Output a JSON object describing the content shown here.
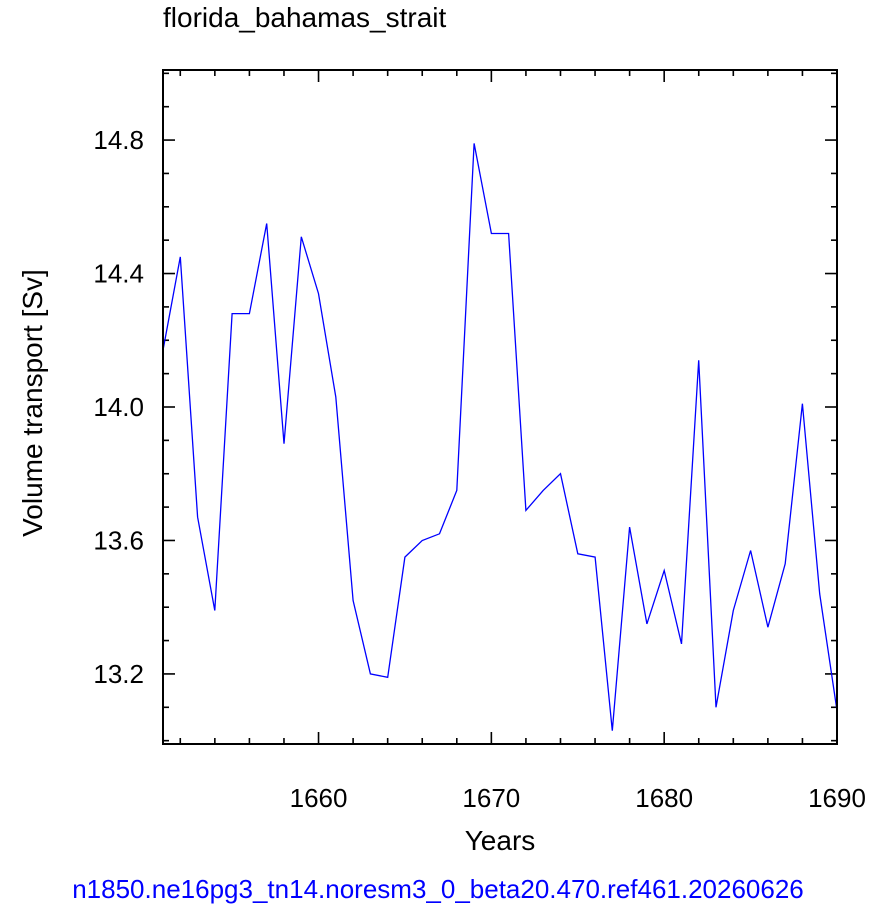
{
  "chart_data": {
    "type": "line",
    "title": "florida_bahamas_strait",
    "xlabel": "Years",
    "ylabel": "Volume transport [Sv]",
    "footer": "n1850.ne16pg3_tn14.noresm3_0_beta20.470.ref461.20260626",
    "xlim": [
      1651,
      1690
    ],
    "ylim": [
      12.99,
      15.01
    ],
    "x_ticks": [
      1660,
      1670,
      1680,
      1690
    ],
    "x_tick_labels": [
      "1660",
      "1670",
      "1680",
      "1690"
    ],
    "y_ticks": [
      13.2,
      13.6,
      14.0,
      14.4,
      14.8
    ],
    "y_tick_labels": [
      "13.2",
      "13.6",
      "14.0",
      "14.4",
      "14.8"
    ],
    "grid": false,
    "series": [
      {
        "color": "#0000ff",
        "x": [
          1651,
          1652,
          1653,
          1654,
          1655,
          1656,
          1657,
          1658,
          1659,
          1660,
          1661,
          1662,
          1663,
          1664,
          1665,
          1666,
          1667,
          1668,
          1669,
          1670,
          1671,
          1672,
          1673,
          1674,
          1675,
          1676,
          1677,
          1678,
          1679,
          1680,
          1681,
          1682,
          1683,
          1684,
          1685,
          1686,
          1687,
          1688,
          1689,
          1690
        ],
        "values": [
          14.17,
          14.45,
          13.67,
          13.39,
          14.28,
          14.28,
          14.55,
          13.89,
          14.51,
          14.34,
          14.03,
          13.42,
          13.2,
          13.19,
          13.55,
          13.6,
          13.62,
          13.75,
          14.79,
          14.52,
          14.52,
          13.69,
          13.75,
          13.8,
          13.56,
          13.55,
          13.03,
          13.64,
          13.35,
          13.51,
          13.29,
          14.14,
          13.1,
          13.39,
          13.57,
          13.34,
          13.53,
          14.01,
          13.44,
          13.09
        ]
      }
    ]
  }
}
